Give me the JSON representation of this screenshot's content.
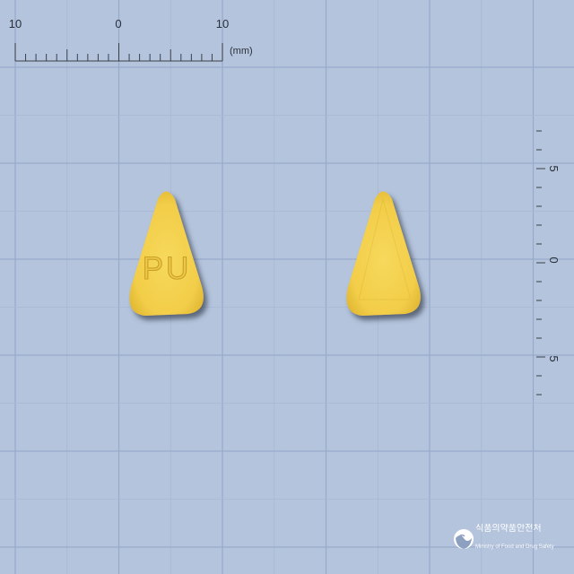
{
  "colors": {
    "background": "#b4c4dc",
    "grid_major": "#97aacb",
    "grid_minor": "#a7b8d4",
    "ruler": "#3a3f4a",
    "pill": "#f3cf4c",
    "pill_edge": "#e2b934",
    "imprint": "#c9a02a",
    "logo": "#ffffff"
  },
  "ruler_top": {
    "labels": [
      "10",
      "0",
      "10"
    ],
    "unit": "(mm)"
  },
  "ruler_right": {
    "labels": [
      "5",
      "0",
      "5"
    ]
  },
  "pill_imprint": "PU",
  "logo": {
    "icon": "ministry-emblem-icon",
    "name_ko": "식품의약품안전처",
    "name_en": "Ministry of Food and Drug Safety"
  }
}
